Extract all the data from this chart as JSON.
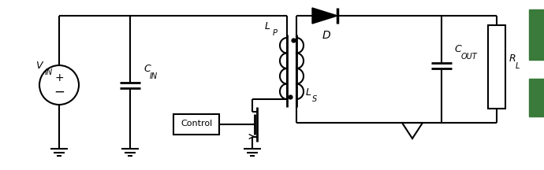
{
  "bg_color": "#ffffff",
  "line_color": "#000000",
  "line_width": 1.5,
  "fig_width": 6.9,
  "fig_height": 2.16,
  "dpi": 100,
  "green_bar_color": "#3a7a3a",
  "label_VIN": "V",
  "label_VIN_sub": "IN",
  "label_CIN": "C",
  "label_CIN_sub": "IN",
  "label_LP": "L",
  "label_LP_sub": "P",
  "label_LS": "L",
  "label_LS_sub": "S",
  "label_D": "D",
  "label_COUT": "C",
  "label_COUT_sub": "OUT",
  "label_RL": "R",
  "label_RL_sub": "L",
  "label_Control": "Control"
}
